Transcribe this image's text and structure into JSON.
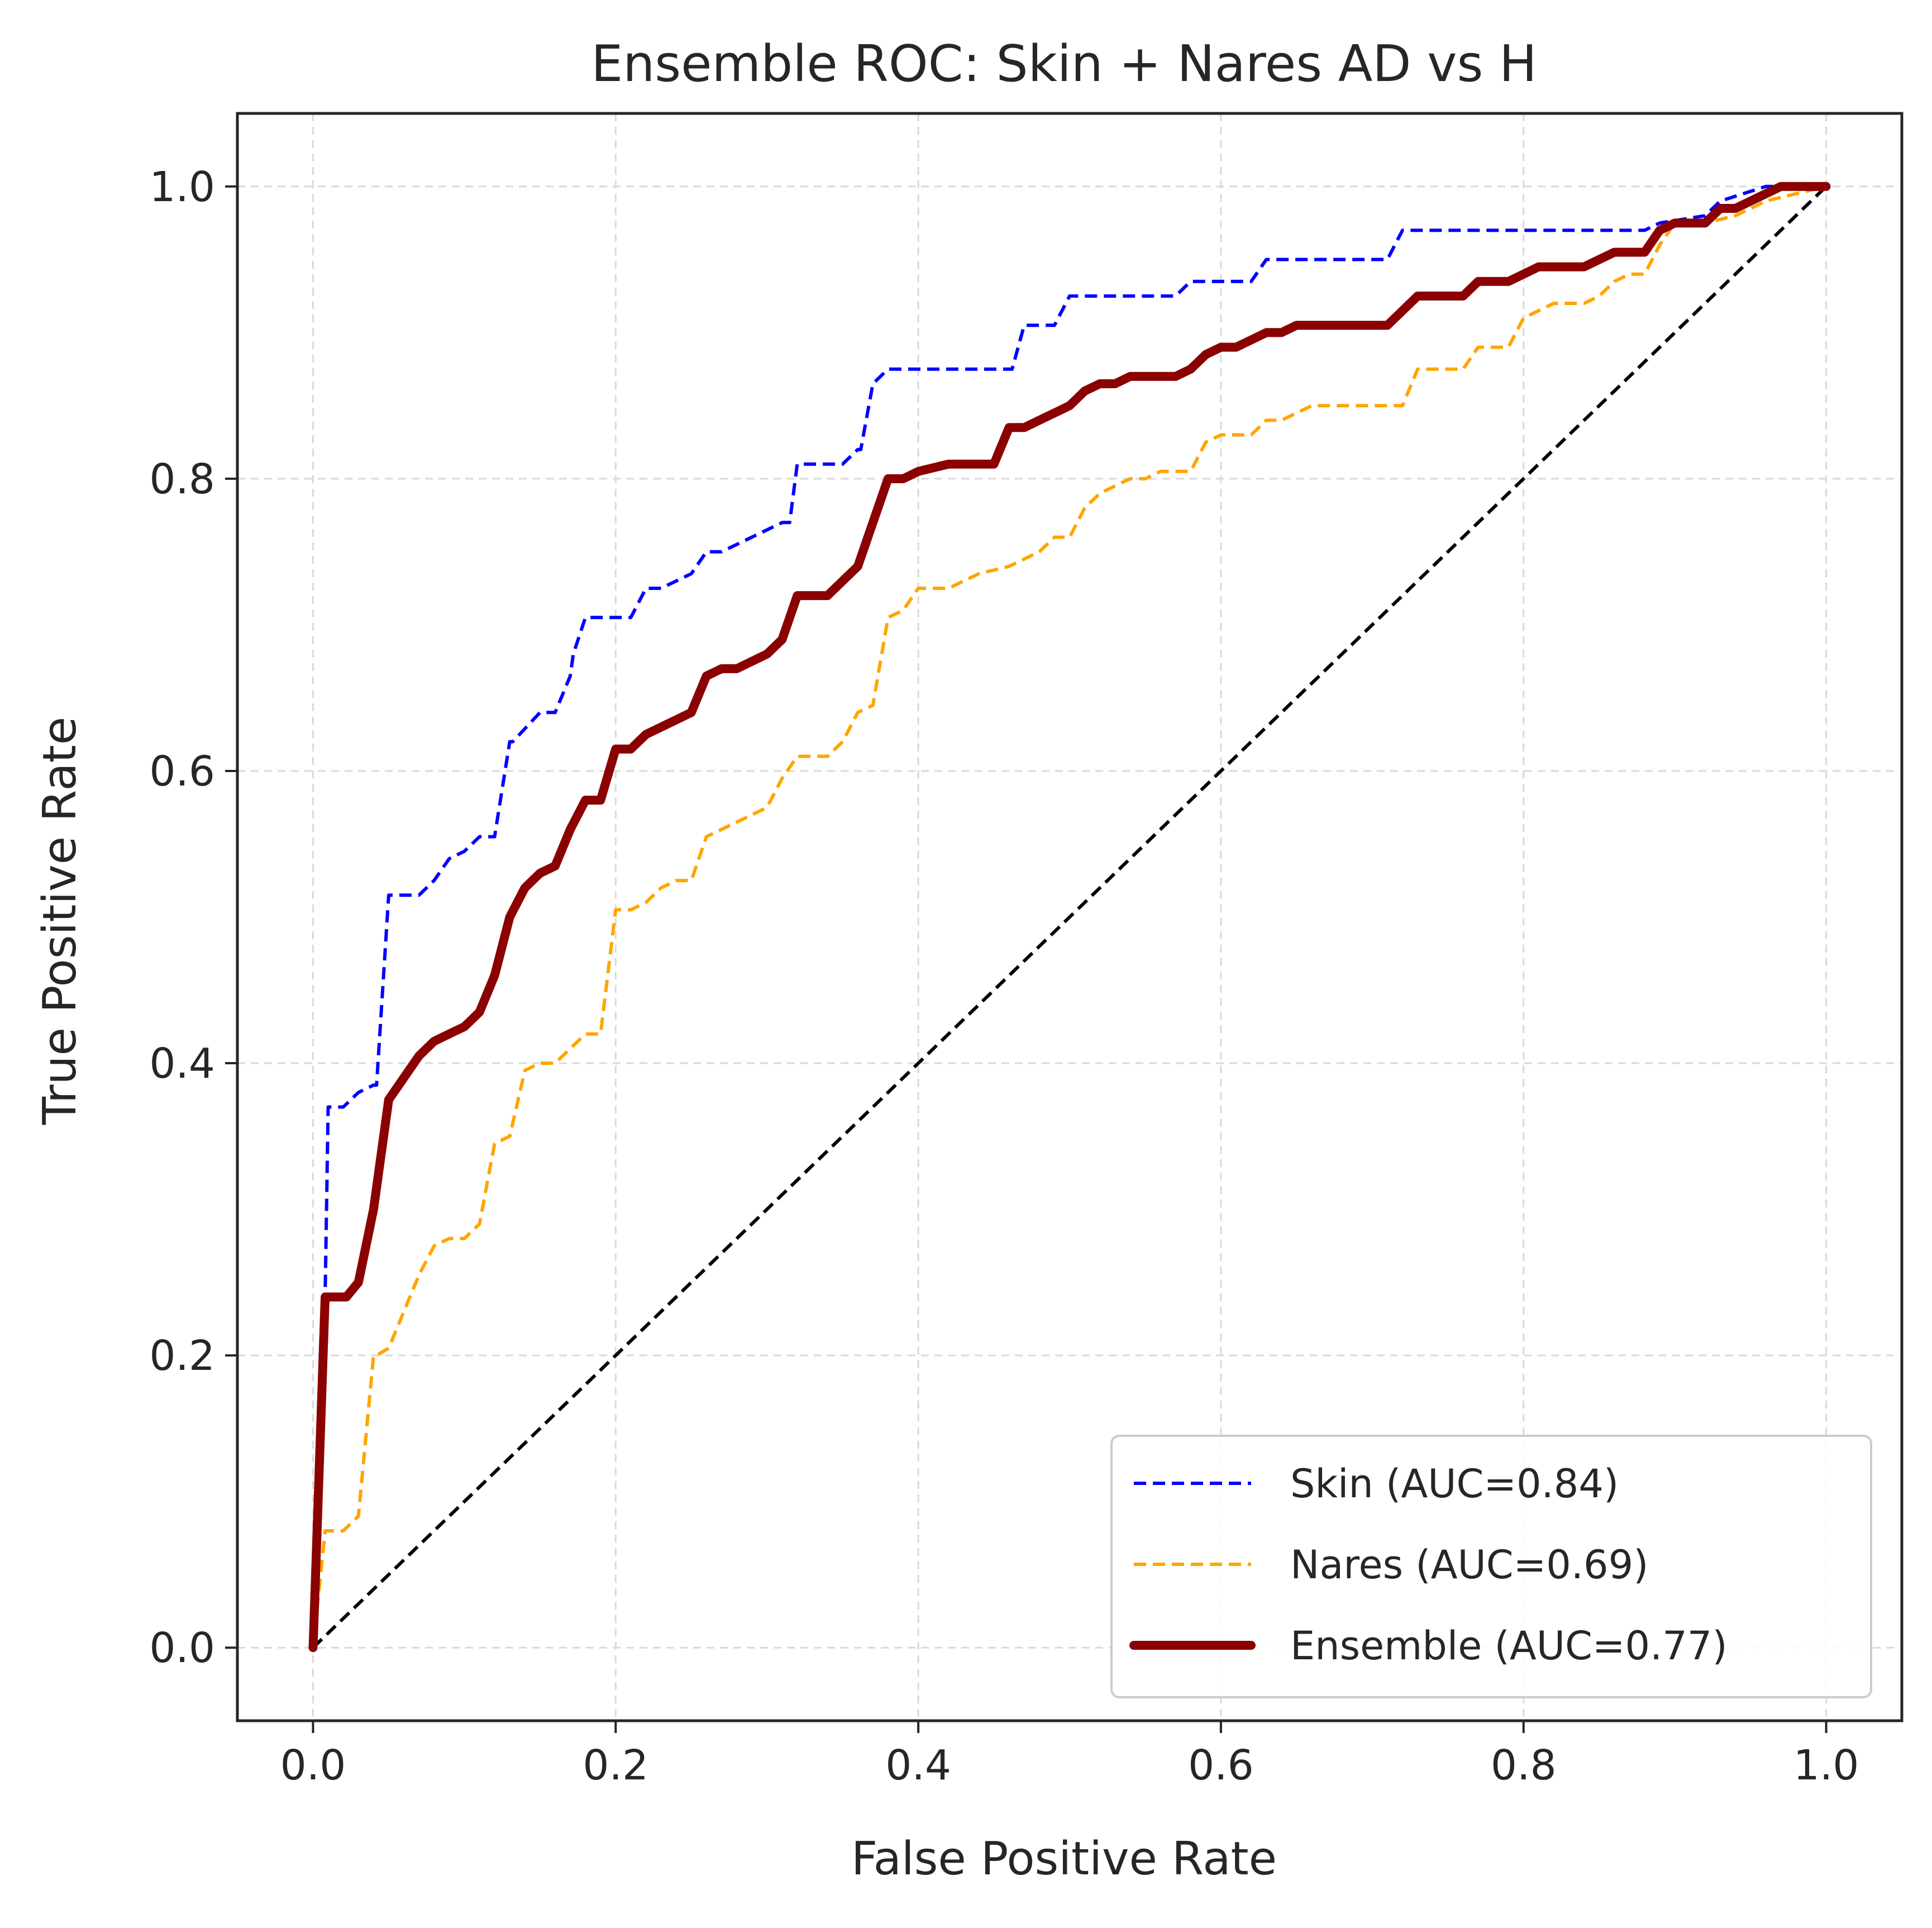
{
  "chart_data": {
    "type": "line",
    "title": "Ensemble ROC: Skin + Nares AD vs H",
    "xlabel": "False Positive Rate",
    "ylabel": "True Positive Rate",
    "xlim": [
      -0.05,
      1.05
    ],
    "ylim": [
      -0.05,
      1.05
    ],
    "xticks": [
      "0.0",
      "0.2",
      "0.4",
      "0.6",
      "0.8",
      "1.0"
    ],
    "yticks": [
      "0.0",
      "0.2",
      "0.4",
      "0.6",
      "0.8",
      "1.0"
    ],
    "grid": true,
    "legend_position": "lower-right",
    "series": [
      {
        "name": "Skin (AUC=0.84)",
        "color": "#0000ff",
        "style": "dashed",
        "x": [
          0.0,
          0.008,
          0.01,
          0.02,
          0.03,
          0.04,
          0.042,
          0.05,
          0.052,
          0.07,
          0.08,
          0.09,
          0.1,
          0.11,
          0.115,
          0.12,
          0.13,
          0.132,
          0.15,
          0.16,
          0.17,
          0.172,
          0.18,
          0.2,
          0.21,
          0.22,
          0.23,
          0.25,
          0.26,
          0.27,
          0.28,
          0.3,
          0.31,
          0.315,
          0.32,
          0.35,
          0.36,
          0.362,
          0.37,
          0.38,
          0.46,
          0.462,
          0.47,
          0.48,
          0.49,
          0.5,
          0.505,
          0.57,
          0.58,
          0.59,
          0.62,
          0.63,
          0.632,
          0.71,
          0.72,
          0.722,
          0.88,
          0.89,
          0.92,
          0.93,
          0.96,
          1.0
        ],
        "y": [
          0.0,
          0.24,
          0.37,
          0.37,
          0.38,
          0.385,
          0.385,
          0.515,
          0.515,
          0.515,
          0.525,
          0.54,
          0.545,
          0.555,
          0.555,
          0.555,
          0.62,
          0.62,
          0.64,
          0.64,
          0.665,
          0.68,
          0.705,
          0.705,
          0.705,
          0.725,
          0.725,
          0.735,
          0.75,
          0.75,
          0.755,
          0.765,
          0.77,
          0.77,
          0.81,
          0.81,
          0.82,
          0.82,
          0.865,
          0.875,
          0.875,
          0.875,
          0.905,
          0.905,
          0.905,
          0.925,
          0.925,
          0.925,
          0.935,
          0.935,
          0.935,
          0.95,
          0.95,
          0.95,
          0.97,
          0.97,
          0.97,
          0.975,
          0.98,
          0.99,
          1.0,
          1.0
        ]
      },
      {
        "name": "Nares (AUC=0.69)",
        "color": "#ffa500",
        "style": "dashed",
        "x": [
          0.0,
          0.008,
          0.01,
          0.02,
          0.03,
          0.04,
          0.042,
          0.05,
          0.06,
          0.07,
          0.08,
          0.09,
          0.1,
          0.11,
          0.12,
          0.13,
          0.14,
          0.15,
          0.16,
          0.17,
          0.18,
          0.19,
          0.2,
          0.21,
          0.22,
          0.23,
          0.24,
          0.25,
          0.26,
          0.27,
          0.28,
          0.29,
          0.3,
          0.31,
          0.32,
          0.34,
          0.35,
          0.36,
          0.37,
          0.38,
          0.39,
          0.4,
          0.42,
          0.44,
          0.46,
          0.47,
          0.48,
          0.49,
          0.5,
          0.51,
          0.52,
          0.53,
          0.54,
          0.55,
          0.56,
          0.58,
          0.59,
          0.6,
          0.61,
          0.62,
          0.63,
          0.64,
          0.65,
          0.66,
          0.68,
          0.7,
          0.72,
          0.73,
          0.74,
          0.76,
          0.77,
          0.78,
          0.79,
          0.8,
          0.81,
          0.82,
          0.83,
          0.84,
          0.85,
          0.86,
          0.87,
          0.88,
          0.89,
          0.9,
          0.92,
          0.94,
          0.96,
          1.0
        ],
        "y": [
          0.0,
          0.08,
          0.08,
          0.08,
          0.09,
          0.2,
          0.2,
          0.205,
          0.23,
          0.255,
          0.275,
          0.28,
          0.28,
          0.29,
          0.345,
          0.35,
          0.395,
          0.4,
          0.4,
          0.41,
          0.42,
          0.42,
          0.505,
          0.505,
          0.51,
          0.52,
          0.525,
          0.525,
          0.555,
          0.56,
          0.565,
          0.57,
          0.575,
          0.595,
          0.61,
          0.61,
          0.62,
          0.64,
          0.645,
          0.705,
          0.71,
          0.725,
          0.725,
          0.735,
          0.74,
          0.745,
          0.75,
          0.76,
          0.76,
          0.78,
          0.79,
          0.795,
          0.8,
          0.8,
          0.805,
          0.805,
          0.825,
          0.83,
          0.83,
          0.83,
          0.84,
          0.84,
          0.845,
          0.85,
          0.85,
          0.85,
          0.85,
          0.875,
          0.875,
          0.875,
          0.89,
          0.89,
          0.89,
          0.91,
          0.915,
          0.92,
          0.92,
          0.92,
          0.925,
          0.935,
          0.94,
          0.94,
          0.96,
          0.975,
          0.975,
          0.98,
          0.99,
          1.0
        ]
      },
      {
        "name": "Ensemble (AUC=0.77)",
        "color": "#8b0000",
        "style": "solid",
        "x": [
          0.0,
          0.008,
          0.012,
          0.022,
          0.03,
          0.04,
          0.05,
          0.06,
          0.07,
          0.08,
          0.09,
          0.1,
          0.11,
          0.12,
          0.13,
          0.14,
          0.15,
          0.16,
          0.17,
          0.18,
          0.19,
          0.2,
          0.21,
          0.22,
          0.23,
          0.24,
          0.25,
          0.26,
          0.27,
          0.28,
          0.29,
          0.3,
          0.31,
          0.32,
          0.34,
          0.35,
          0.36,
          0.37,
          0.38,
          0.39,
          0.4,
          0.42,
          0.44,
          0.45,
          0.46,
          0.47,
          0.48,
          0.49,
          0.5,
          0.51,
          0.52,
          0.53,
          0.54,
          0.55,
          0.56,
          0.57,
          0.58,
          0.59,
          0.6,
          0.61,
          0.62,
          0.63,
          0.64,
          0.65,
          0.66,
          0.68,
          0.7,
          0.71,
          0.72,
          0.73,
          0.74,
          0.76,
          0.77,
          0.78,
          0.79,
          0.8,
          0.81,
          0.82,
          0.84,
          0.85,
          0.86,
          0.87,
          0.88,
          0.89,
          0.9,
          0.91,
          0.92,
          0.93,
          0.94,
          0.95,
          0.96,
          0.97,
          1.0
        ],
        "y": [
          0.0,
          0.24,
          0.24,
          0.24,
          0.25,
          0.3,
          0.375,
          0.39,
          0.405,
          0.415,
          0.42,
          0.425,
          0.435,
          0.46,
          0.5,
          0.52,
          0.53,
          0.535,
          0.56,
          0.58,
          0.58,
          0.615,
          0.615,
          0.625,
          0.63,
          0.635,
          0.64,
          0.665,
          0.67,
          0.67,
          0.675,
          0.68,
          0.69,
          0.72,
          0.72,
          0.73,
          0.74,
          0.77,
          0.8,
          0.8,
          0.805,
          0.81,
          0.81,
          0.81,
          0.835,
          0.835,
          0.84,
          0.845,
          0.85,
          0.86,
          0.865,
          0.865,
          0.87,
          0.87,
          0.87,
          0.87,
          0.875,
          0.885,
          0.89,
          0.89,
          0.895,
          0.9,
          0.9,
          0.905,
          0.905,
          0.905,
          0.905,
          0.905,
          0.915,
          0.925,
          0.925,
          0.925,
          0.935,
          0.935,
          0.935,
          0.94,
          0.945,
          0.945,
          0.945,
          0.95,
          0.955,
          0.955,
          0.955,
          0.97,
          0.975,
          0.975,
          0.975,
          0.985,
          0.985,
          0.99,
          0.995,
          1.0,
          1.0
        ]
      }
    ],
    "reference_line": {
      "color": "#000000",
      "style": "dashed",
      "x": [
        0,
        1
      ],
      "y": [
        0,
        1
      ]
    }
  }
}
